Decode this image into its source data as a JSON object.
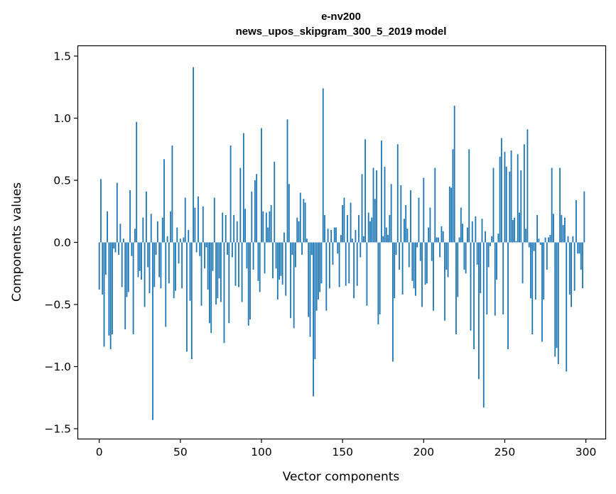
{
  "chart_data": {
    "type": "bar",
    "title_line1": "e-nv200",
    "title_line2": "news_upos_skipgram_300_5_2019 model",
    "xlabel": "Vector components",
    "ylabel": "Components values",
    "xlim": [
      -13,
      312
    ],
    "ylim": [
      -1.58,
      1.58
    ],
    "xticks": [
      0,
      50,
      100,
      150,
      200,
      250,
      300
    ],
    "xtick_labels": [
      "0",
      "50",
      "100",
      "150",
      "200",
      "250",
      "300"
    ],
    "yticks": [
      -1.5,
      -1.0,
      -0.5,
      0.0,
      0.5,
      1.0,
      1.5
    ],
    "ytick_labels": [
      "−1.5",
      "−1.0",
      "−0.5",
      "0.0",
      "0.5",
      "1.0",
      "1.5"
    ],
    "bar_color": "#1f77b4",
    "grid": false,
    "x": [
      0,
      1,
      2,
      3,
      4,
      5,
      6,
      7,
      8,
      9,
      10,
      11,
      12,
      13,
      14,
      15,
      16,
      17,
      18,
      19,
      20,
      21,
      22,
      23,
      24,
      25,
      26,
      27,
      28,
      29,
      30,
      31,
      32,
      33,
      34,
      35,
      36,
      37,
      38,
      39,
      40,
      41,
      42,
      43,
      44,
      45,
      46,
      47,
      48,
      49,
      50,
      51,
      52,
      53,
      54,
      55,
      56,
      57,
      58,
      59,
      60,
      61,
      62,
      63,
      64,
      65,
      66,
      67,
      68,
      69,
      70,
      71,
      72,
      73,
      74,
      75,
      76,
      77,
      78,
      79,
      80,
      81,
      82,
      83,
      84,
      85,
      86,
      87,
      88,
      89,
      90,
      91,
      92,
      93,
      94,
      95,
      96,
      97,
      98,
      99,
      100,
      101,
      102,
      103,
      104,
      105,
      106,
      107,
      108,
      109,
      110,
      111,
      112,
      113,
      114,
      115,
      116,
      117,
      118,
      119,
      120,
      121,
      122,
      123,
      124,
      125,
      126,
      127,
      128,
      129,
      130,
      131,
      132,
      133,
      134,
      135,
      136,
      137,
      138,
      139,
      140,
      141,
      142,
      143,
      144,
      145,
      146,
      147,
      148,
      149,
      150,
      151,
      152,
      153,
      154,
      155,
      156,
      157,
      158,
      159,
      160,
      161,
      162,
      163,
      164,
      165,
      166,
      167,
      168,
      169,
      170,
      171,
      172,
      173,
      174,
      175,
      176,
      177,
      178,
      179,
      180,
      181,
      182,
      183,
      184,
      185,
      186,
      187,
      188,
      189,
      190,
      191,
      192,
      193,
      194,
      195,
      196,
      197,
      198,
      199,
      200,
      201,
      202,
      203,
      204,
      205,
      206,
      207,
      208,
      209,
      210,
      211,
      212,
      213,
      214,
      215,
      216,
      217,
      218,
      219,
      220,
      221,
      222,
      223,
      224,
      225,
      226,
      227,
      228,
      229,
      230,
      231,
      232,
      233,
      234,
      235,
      236,
      237,
      238,
      239,
      240,
      241,
      242,
      243,
      244,
      245,
      246,
      247,
      248,
      249,
      250,
      251,
      252,
      253,
      254,
      255,
      256,
      257,
      258,
      259,
      260,
      261,
      262,
      263,
      264,
      265,
      266,
      267,
      268,
      269,
      270,
      271,
      272,
      273,
      274,
      275,
      276,
      277,
      278,
      279,
      280,
      281,
      282,
      283,
      284,
      285,
      286,
      287,
      288,
      289,
      290,
      291,
      292,
      293,
      294,
      295,
      296,
      297,
      298,
      299
    ],
    "values": [
      -0.38,
      0.51,
      -0.42,
      -0.84,
      -0.26,
      0.25,
      -0.75,
      -0.86,
      -0.74,
      -0.05,
      -0.08,
      0.48,
      -0.1,
      0.15,
      -0.36,
      0.03,
      -0.7,
      -0.44,
      -0.4,
      0.42,
      -0.11,
      -0.74,
      0.11,
      0.97,
      -0.28,
      -0.23,
      -0.3,
      0.2,
      -0.52,
      0.41,
      -0.2,
      -0.41,
      0.23,
      -1.43,
      -0.36,
      -0.1,
      0.17,
      -0.28,
      -0.37,
      0.2,
      0.67,
      -0.68,
      0.05,
      -0.33,
      0.25,
      0.78,
      -0.45,
      -0.39,
      0.12,
      -0.17,
      0.03,
      -0.37,
      0.04,
      0.36,
      -0.88,
      0.1,
      -0.47,
      -0.94,
      1.41,
      0.28,
      -0.08,
      0.37,
      -0.11,
      -0.51,
      0.29,
      -0.21,
      -0.04,
      -0.38,
      -0.65,
      -0.73,
      -0.23,
      0.36,
      -0.5,
      -0.45,
      -0.29,
      -0.48,
      0.24,
      -0.81,
      0.22,
      -0.1,
      -0.65,
      0.78,
      -0.12,
      0.22,
      -0.35,
      0.17,
      -0.36,
      0.6,
      -0.48,
      0.88,
      0.27,
      -0.21,
      -0.67,
      -0.62,
      0.41,
      -0.22,
      0.5,
      0.55,
      -0.31,
      -0.4,
      0.92,
      0.25,
      -0.25,
      0.24,
      0.12,
      0.25,
      0.3,
      -0.29,
      0.65,
      -0.21,
      -0.46,
      -0.3,
      -0.27,
      -0.34,
      0.08,
      -0.43,
      0.99,
      0.47,
      -0.61,
      -0.1,
      -0.69,
      -0.2,
      0.2,
      0.17,
      0.4,
      -0.1,
      0.35,
      0.32,
      0.03,
      -0.6,
      -0.76,
      -0.1,
      -1.24,
      -0.94,
      -0.55,
      -0.46,
      -0.4,
      -0.33,
      1.24,
      0.22,
      -0.55,
      0.11,
      -0.37,
      0.1,
      -0.18,
      0.12,
      0.12,
      -0.09,
      -0.36,
      0.06,
      0.3,
      0.36,
      -0.35,
      0.22,
      -0.33,
      0.32,
      0.03,
      -0.45,
      0.1,
      -0.35,
      0.22,
      -0.12,
      0.55,
      0.05,
      0.83,
      -0.51,
      0.24,
      0.17,
      0.2,
      0.6,
      0.35,
      0.58,
      -0.66,
      -0.58,
      0.82,
      0.05,
      0.61,
      0.12,
      0.06,
      0.22,
      0.47,
      -0.96,
      -0.45,
      -0.1,
      0.79,
      -0.22,
      0.46,
      -0.42,
      0.19,
      0.3,
      0.11,
      -0.2,
      0.42,
      -0.31,
      -0.37,
      -0.43,
      -0.04,
      0.36,
      -0.15,
      -0.52,
      0.52,
      -0.34,
      -0.33,
      0.12,
      0.28,
      -0.15,
      -0.55,
      0.6,
      0.04,
      0.04,
      -0.12,
      0.13,
      0.09,
      -0.63,
      -0.22,
      -0.28,
      0.45,
      0.44,
      0.75,
      1.1,
      -0.74,
      -0.44,
      0.04,
      0.28,
      0.15,
      -0.22,
      -0.25,
      0.12,
      0.75,
      -0.71,
      0.17,
      -0.86,
      0.21,
      -0.18,
      -1.1,
      -0.41,
      0.19,
      -1.33,
      0.09,
      -0.58,
      -0.2,
      -0.03,
      0.05,
      0.6,
      -0.59,
      -0.3,
      0.07,
      0.69,
      0.84,
      -0.58,
      0.73,
      0.61,
      -0.86,
      0.57,
      0.74,
      0.18,
      0.2,
      0.01,
      0.71,
      0.24,
      0.58,
      -0.33,
      0.79,
      0.11,
      0.91,
      -0.04,
      -0.45,
      -0.74,
      -0.07,
      -0.46,
      0.22,
      0.03,
      -0.02,
      -0.8,
      -0.46,
      0.04,
      -0.22,
      0.04,
      0.06,
      0.6,
      0.23,
      -0.92,
      -0.85,
      -0.98,
      0.6,
      0.22,
      0.14,
      0.2,
      -1.04,
      0.05,
      -0.42,
      -0.52,
      0.05,
      -0.39,
      0.34,
      -0.09,
      -0.09,
      -0.22,
      -0.37,
      0.41
    ]
  }
}
